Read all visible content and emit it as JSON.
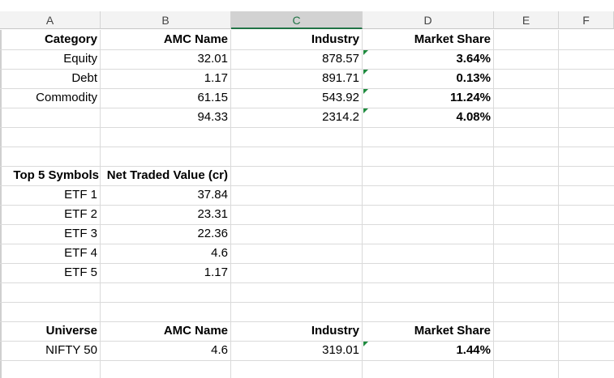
{
  "columns": [
    "A",
    "B",
    "C",
    "D",
    "E",
    "F"
  ],
  "selected_column": "C",
  "table1": {
    "headers": [
      "Category",
      "AMC Name",
      "Industry",
      "Market Share"
    ],
    "rows": [
      [
        "Equity",
        "32.01",
        "878.57",
        "3.64%"
      ],
      [
        "Debt",
        "1.17",
        "891.71",
        "0.13%"
      ],
      [
        "Commodity",
        "61.15",
        "543.92",
        "11.24%"
      ],
      [
        "",
        "94.33",
        "2314.2",
        "4.08%"
      ]
    ]
  },
  "table2": {
    "headers": [
      "Top 5 Symbols",
      "Net Traded Value (cr)"
    ],
    "rows": [
      [
        "ETF 1",
        "37.84"
      ],
      [
        "ETF 2",
        "23.31"
      ],
      [
        "ETF 3",
        "22.36"
      ],
      [
        "ETF 4",
        "4.6"
      ],
      [
        "ETF 5",
        "1.17"
      ]
    ]
  },
  "table3": {
    "headers": [
      "Universe",
      "AMC Name",
      "Industry",
      "Market Share"
    ],
    "rows": [
      [
        "NIFTY 50",
        "4.6",
        "319.01",
        "1.44%"
      ]
    ]
  }
}
